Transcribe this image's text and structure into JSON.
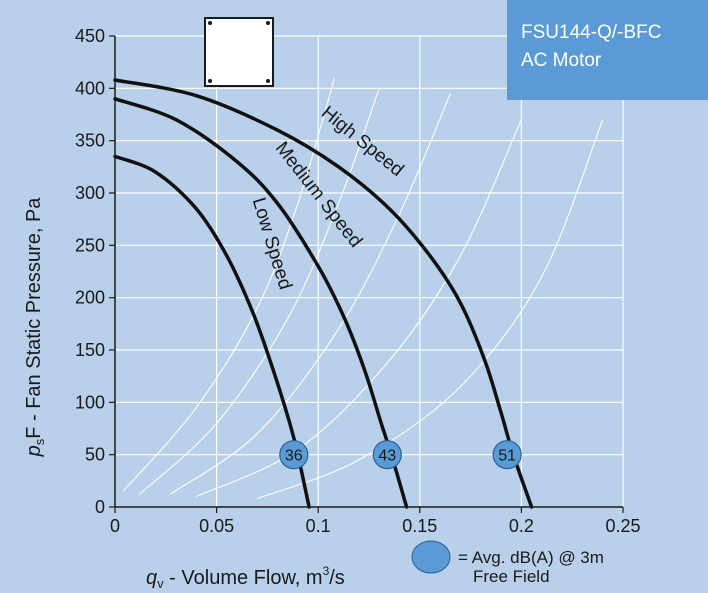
{
  "chart_data": {
    "type": "line",
    "title_box": {
      "line1": "FSU144-Q/-BFC",
      "line2": "AC Motor"
    },
    "xlabel": "q",
    "xlabel_sub": "v",
    "xlabel_rest": " - Volume Flow, m",
    "xlabel_sup": "3",
    "xlabel_end": "/s",
    "ylabel": "p",
    "ylabel_sub": "s",
    "ylabel_rest": "F - Fan Static Pressure, Pa",
    "xlim": [
      0,
      0.25
    ],
    "ylim": [
      0,
      450
    ],
    "xticks": [
      0,
      0.05,
      0.1,
      0.15,
      0.2,
      0.25
    ],
    "xtick_labels": [
      "0",
      "0.05",
      "0.1",
      "0.15",
      "0.2",
      "0.25"
    ],
    "yticks": [
      0,
      50,
      100,
      150,
      200,
      250,
      300,
      350,
      400,
      450
    ],
    "ytick_labels": [
      "0",
      "50",
      "100",
      "150",
      "200",
      "250",
      "300",
      "350",
      "400",
      "450"
    ],
    "grid": true,
    "series": [
      {
        "name": "Low Speed",
        "sound_dBA": "36",
        "marker": [
          0.088,
          50
        ],
        "points": [
          [
            0,
            335
          ],
          [
            0.02,
            320
          ],
          [
            0.04,
            285
          ],
          [
            0.055,
            240
          ],
          [
            0.068,
            185
          ],
          [
            0.078,
            130
          ],
          [
            0.086,
            80
          ],
          [
            0.09,
            50
          ],
          [
            0.0955,
            0
          ]
        ]
      },
      {
        "name": "Medium Speed",
        "sound_dBA": "43",
        "marker": [
          0.134,
          50
        ],
        "points": [
          [
            0,
            390
          ],
          [
            0.03,
            370
          ],
          [
            0.06,
            330
          ],
          [
            0.08,
            290
          ],
          [
            0.1,
            230
          ],
          [
            0.113,
            180
          ],
          [
            0.123,
            130
          ],
          [
            0.131,
            80
          ],
          [
            0.136,
            50
          ],
          [
            0.1435,
            0
          ]
        ]
      },
      {
        "name": "High Speed",
        "sound_dBA": "51",
        "marker": [
          0.193,
          50
        ],
        "points": [
          [
            0,
            408
          ],
          [
            0.04,
            393
          ],
          [
            0.08,
            360
          ],
          [
            0.11,
            325
          ],
          [
            0.135,
            285
          ],
          [
            0.155,
            240
          ],
          [
            0.17,
            195
          ],
          [
            0.182,
            140
          ],
          [
            0.19,
            90
          ],
          [
            0.196,
            50
          ],
          [
            0.205,
            0
          ]
        ]
      }
    ],
    "system_curves": [
      [
        [
          0.004,
          15
        ],
        [
          0.04,
          95
        ],
        [
          0.07,
          190
        ],
        [
          0.09,
          290
        ],
        [
          0.108,
          410
        ]
      ],
      [
        [
          0.012,
          12
        ],
        [
          0.05,
          80
        ],
        [
          0.085,
          180
        ],
        [
          0.11,
          290
        ],
        [
          0.13,
          400
        ]
      ],
      [
        [
          0.027,
          12
        ],
        [
          0.07,
          70
        ],
        [
          0.11,
          170
        ],
        [
          0.14,
          280
        ],
        [
          0.165,
          395
        ]
      ],
      [
        [
          0.04,
          10
        ],
        [
          0.09,
          55
        ],
        [
          0.135,
          140
        ],
        [
          0.17,
          240
        ],
        [
          0.2,
          370
        ]
      ],
      [
        [
          0.07,
          8
        ],
        [
          0.12,
          45
        ],
        [
          0.17,
          115
        ],
        [
          0.21,
          220
        ],
        [
          0.24,
          370
        ]
      ]
    ],
    "legend": {
      "text_line1": "= Avg. dB(A) @ 3m",
      "text_line2": "Free Field"
    },
    "colors": {
      "background": "#b8d0ea",
      "grid": "#ffffff",
      "curve": "#111111",
      "marker_fill": "#5b9bd5",
      "marker_stroke": "#2a5f95",
      "model_box": "#5b9bd5"
    },
    "icon": "fan-outline-square-icon"
  }
}
